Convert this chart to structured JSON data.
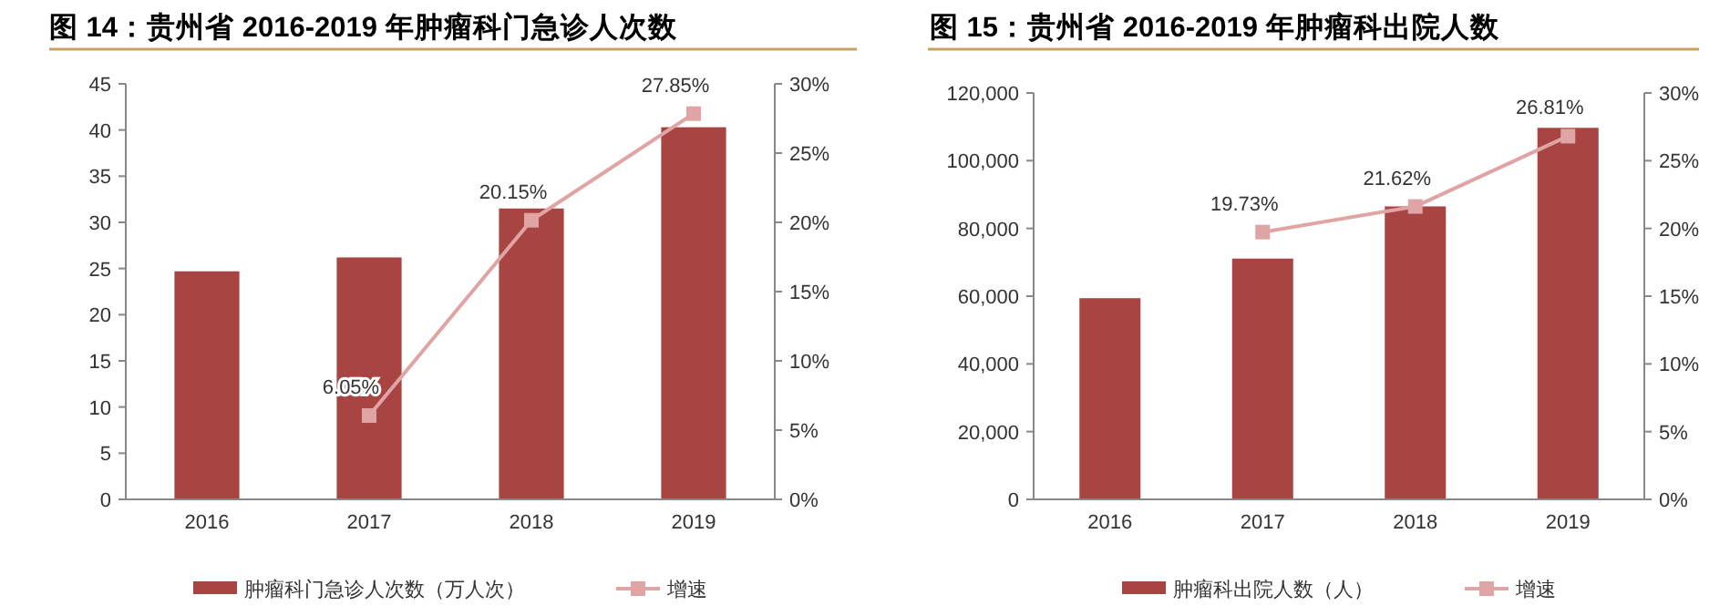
{
  "chart_data": [
    {
      "type": "bar",
      "title": "图 14：贵州省 2016-2019 年肿瘤科门急诊人次数",
      "categories": [
        "2016",
        "2017",
        "2018",
        "2019"
      ],
      "series": [
        {
          "name": "肿瘤科门急诊人次数（万人次）",
          "color": "#a84442",
          "values": [
            24.7,
            26.2,
            31.5,
            40.3
          ]
        },
        {
          "name": "增速",
          "type": "line",
          "axis": "y2",
          "color": "#e0a4a4",
          "marker": "square",
          "values": [
            null,
            6.05,
            20.15,
            27.85
          ],
          "value_labels": [
            null,
            "6.05%",
            "20.15%",
            "27.85%"
          ]
        }
      ],
      "ylim": [
        0,
        45
      ],
      "yticks": [
        0,
        5,
        10,
        15,
        20,
        25,
        30,
        35,
        40,
        45
      ],
      "y2lim": [
        0,
        30
      ],
      "y2ticks": [
        {
          "value": 0,
          "label": "0%"
        },
        {
          "value": 5,
          "label": "5%"
        },
        {
          "value": 10,
          "label": "10%"
        },
        {
          "value": 15,
          "label": "15%"
        },
        {
          "value": 20,
          "label": "20%"
        },
        {
          "value": 25,
          "label": "25%"
        },
        {
          "value": 30,
          "label": "30%"
        }
      ],
      "legend": "bottom"
    },
    {
      "type": "bar",
      "title": "图 15：贵州省 2016-2019 年肿瘤科出院人数",
      "categories": [
        "2016",
        "2017",
        "2018",
        "2019"
      ],
      "series": [
        {
          "name": "肿瘤科出院人数（人）",
          "color": "#a84442",
          "values": [
            59400,
            71100,
            86500,
            109700
          ]
        },
        {
          "name": "增速",
          "type": "line",
          "axis": "y2",
          "color": "#e0a4a4",
          "marker": "square",
          "values": [
            null,
            19.73,
            21.62,
            26.81
          ],
          "value_labels": [
            null,
            "19.73%",
            "21.62%",
            "26.81%"
          ]
        }
      ],
      "ylim": [
        0,
        120000
      ],
      "yticks": [
        {
          "value": 0,
          "label": "0"
        },
        {
          "value": 20000,
          "label": "20,000"
        },
        {
          "value": 40000,
          "label": "40,000"
        },
        {
          "value": 60000,
          "label": "60,000"
        },
        {
          "value": 80000,
          "label": "80,000"
        },
        {
          "value": 100000,
          "label": "100,000"
        },
        {
          "value": 120000,
          "label": "120,000"
        }
      ],
      "y2lim": [
        0,
        30
      ],
      "y2ticks": [
        {
          "value": 0,
          "label": "0%"
        },
        {
          "value": 5,
          "label": "5%"
        },
        {
          "value": 10,
          "label": "10%"
        },
        {
          "value": 15,
          "label": "15%"
        },
        {
          "value": 20,
          "label": "20%"
        },
        {
          "value": 25,
          "label": "25%"
        },
        {
          "value": 30,
          "label": "30%"
        }
      ],
      "legend": "bottom"
    }
  ]
}
